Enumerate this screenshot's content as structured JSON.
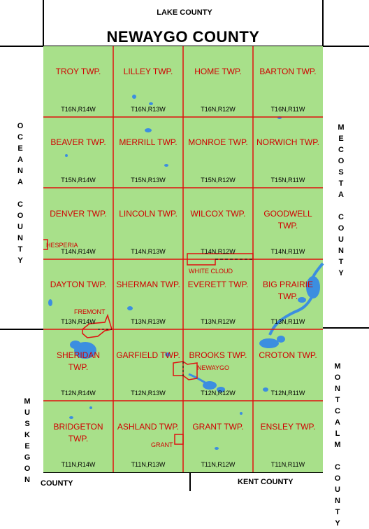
{
  "title": "NEWAYGO COUNTY",
  "surrounding_counties": {
    "north": "LAKE COUNTY",
    "west": "OCEANA COUNTY",
    "east_upper": "MECOSTA COUNTY",
    "east_lower": "MONTCALM COUNTY",
    "southwest_vertical": "MUSKEGON",
    "southwest_bottom": "COUNTY",
    "south": "KENT COUNTY"
  },
  "townships": [
    {
      "name": "TROY TWP.",
      "code": "T16N,R14W"
    },
    {
      "name": "LILLEY TWP.",
      "code": "T16N,R13W"
    },
    {
      "name": "HOME TWP.",
      "code": "T16N,R12W"
    },
    {
      "name": "BARTON TWP.",
      "code": "T16N,R11W"
    },
    {
      "name": "BEAVER TWP.",
      "code": "T15N,R14W"
    },
    {
      "name": "MERRILL TWP.",
      "code": "T15N,R13W"
    },
    {
      "name": "MONROE TWP.",
      "code": "T15N,R12W"
    },
    {
      "name": "NORWICH TWP.",
      "code": "T15N,R11W"
    },
    {
      "name": "DENVER TWP.",
      "code": "T14N,R14W"
    },
    {
      "name": "LINCOLN TWP.",
      "code": "T14N,R13W"
    },
    {
      "name": "WILCOX TWP.",
      "code": "T14N,R12W"
    },
    {
      "name": "GOODWELL TWP.",
      "code": "T14N,R11W"
    },
    {
      "name": "DAYTON TWP.",
      "code": "T13N,R14W"
    },
    {
      "name": "SHERMAN TWP.",
      "code": "T13N,R13W"
    },
    {
      "name": "EVERETT TWP.",
      "code": "T13N,R12W"
    },
    {
      "name": "BIG PRAIRIE TWP.",
      "code": "T13N,R11W"
    },
    {
      "name": "SHERIDAN TWP.",
      "code": "T12N,R14W"
    },
    {
      "name": "GARFIELD TWP.",
      "code": "T12N,R13W"
    },
    {
      "name": "BROOKS TWP.",
      "code": "T12N,R12W"
    },
    {
      "name": "CROTON TWP.",
      "code": "T12N,R11W"
    },
    {
      "name": "BRIDGETON TWP.",
      "code": "T11N,R14W"
    },
    {
      "name": "ASHLAND TWP.",
      "code": "T11N,R13W"
    },
    {
      "name": "GRANT TWP.",
      "code": "T11N,R12W"
    },
    {
      "name": "ENSLEY TWP.",
      "code": "T11N,R11W"
    }
  ],
  "cities": {
    "hesperia": "HESPERIA",
    "white_cloud": "WHITE CLOUD",
    "fremont": "FREMONT",
    "newaygo": "NEWAYGO",
    "grant": "GRANT"
  },
  "colors": {
    "land": "#a8e08a",
    "water": "#3c8ee0",
    "township_border": "#e01010",
    "label": "#d00000",
    "outline": "#000000"
  }
}
